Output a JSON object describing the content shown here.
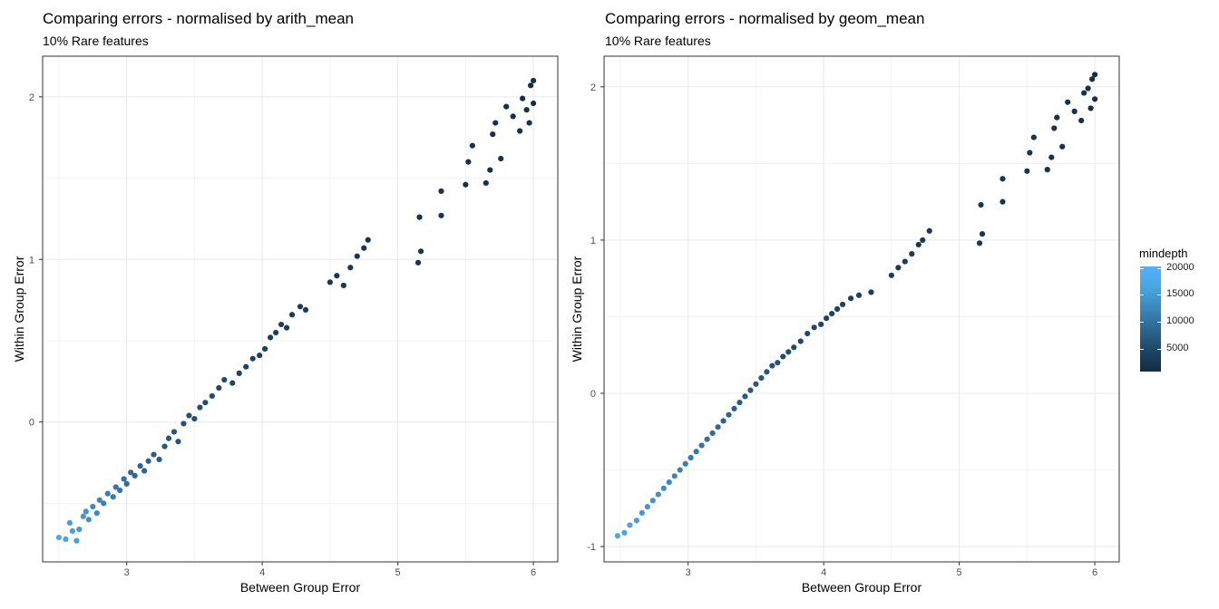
{
  "panels": [
    {
      "title": "Comparing errors - normalised by arith_mean",
      "subtitle": "10% Rare features",
      "xlabel": "Between Group Error",
      "ylabel": "Within Group Error"
    },
    {
      "title": "Comparing errors - normalised by geom_mean",
      "subtitle": "10% Rare features",
      "xlabel": "Between Group Error",
      "ylabel": "Within Group Error"
    }
  ],
  "legend": {
    "title": "mindepth",
    "ticks": [
      "20000",
      "15000",
      "10000",
      "5000"
    ],
    "low_color": "#132b43",
    "high_color": "#56b1f7"
  },
  "chart_data": [
    {
      "type": "scatter",
      "title": "Comparing errors - normalised by arith_mean",
      "subtitle": "10% Rare features",
      "xlabel": "Between Group Error",
      "ylabel": "Within Group Error",
      "xlim": [
        2.38,
        6.18
      ],
      "ylim": [
        -0.86,
        2.25
      ],
      "xticks": [
        3,
        4,
        5,
        6
      ],
      "yticks": [
        0,
        1,
        2
      ],
      "grid": true,
      "color_by": "mindepth",
      "points": [
        [
          2.5,
          -0.71,
          18500
        ],
        [
          2.55,
          -0.72,
          18000
        ],
        [
          2.6,
          -0.67,
          17500
        ],
        [
          2.58,
          -0.62,
          17000
        ],
        [
          2.65,
          -0.66,
          16500
        ],
        [
          2.68,
          -0.58,
          16000
        ],
        [
          2.63,
          -0.73,
          17000
        ],
        [
          2.7,
          -0.55,
          15500
        ],
        [
          2.72,
          -0.6,
          15000
        ],
        [
          2.75,
          -0.52,
          14500
        ],
        [
          2.78,
          -0.56,
          14000
        ],
        [
          2.8,
          -0.48,
          13500
        ],
        [
          2.83,
          -0.5,
          13000
        ],
        [
          2.86,
          -0.44,
          12500
        ],
        [
          2.9,
          -0.46,
          12000
        ],
        [
          2.92,
          -0.4,
          11500
        ],
        [
          2.95,
          -0.42,
          11000
        ],
        [
          2.98,
          -0.35,
          10500
        ],
        [
          3.0,
          -0.38,
          10000
        ],
        [
          3.03,
          -0.31,
          9800
        ],
        [
          3.06,
          -0.33,
          9500
        ],
        [
          3.1,
          -0.27,
          9000
        ],
        [
          3.13,
          -0.3,
          8800
        ],
        [
          3.16,
          -0.24,
          8500
        ],
        [
          3.2,
          -0.2,
          8000
        ],
        [
          3.24,
          -0.23,
          7800
        ],
        [
          3.28,
          -0.15,
          7500
        ],
        [
          3.31,
          -0.1,
          7200
        ],
        [
          3.35,
          -0.06,
          7000
        ],
        [
          3.38,
          -0.12,
          6800
        ],
        [
          3.42,
          -0.01,
          6500
        ],
        [
          3.46,
          0.04,
          6300
        ],
        [
          3.5,
          0.02,
          6000
        ],
        [
          3.54,
          0.09,
          5800
        ],
        [
          3.58,
          0.12,
          5600
        ],
        [
          3.63,
          0.16,
          5400
        ],
        [
          3.68,
          0.21,
          5200
        ],
        [
          3.72,
          0.26,
          5000
        ],
        [
          3.78,
          0.24,
          4800
        ],
        [
          3.83,
          0.3,
          4600
        ],
        [
          3.88,
          0.34,
          4400
        ],
        [
          3.93,
          0.39,
          4200
        ],
        [
          3.98,
          0.41,
          4000
        ],
        [
          4.02,
          0.45,
          3900
        ],
        [
          4.06,
          0.52,
          3800
        ],
        [
          4.1,
          0.55,
          3700
        ],
        [
          4.14,
          0.6,
          3600
        ],
        [
          4.18,
          0.58,
          3500
        ],
        [
          4.22,
          0.66,
          3400
        ],
        [
          4.28,
          0.71,
          3300
        ],
        [
          4.32,
          0.69,
          3200
        ],
        [
          4.5,
          0.86,
          3000
        ],
        [
          4.55,
          0.9,
          2900
        ],
        [
          4.6,
          0.84,
          2800
        ],
        [
          4.65,
          0.95,
          2700
        ],
        [
          4.7,
          1.02,
          2600
        ],
        [
          4.75,
          1.07,
          2500
        ],
        [
          4.78,
          1.12,
          2400
        ],
        [
          5.15,
          0.98,
          2300
        ],
        [
          5.17,
          1.05,
          2300
        ],
        [
          5.16,
          1.26,
          2200
        ],
        [
          5.32,
          1.27,
          2200
        ],
        [
          5.32,
          1.42,
          2100
        ],
        [
          5.5,
          1.46,
          2100
        ],
        [
          5.52,
          1.6,
          2000
        ],
        [
          5.55,
          1.7,
          2000
        ],
        [
          5.65,
          1.47,
          1900
        ],
        [
          5.68,
          1.55,
          1900
        ],
        [
          5.7,
          1.77,
          1800
        ],
        [
          5.72,
          1.84,
          1800
        ],
        [
          5.76,
          1.62,
          1800
        ],
        [
          5.8,
          1.94,
          1700
        ],
        [
          5.85,
          1.88,
          1700
        ],
        [
          5.9,
          1.79,
          1700
        ],
        [
          5.92,
          1.99,
          1600
        ],
        [
          5.95,
          1.92,
          1600
        ],
        [
          5.98,
          2.07,
          1500
        ],
        [
          6.0,
          2.1,
          1500
        ],
        [
          5.97,
          1.84,
          1500
        ],
        [
          6.0,
          1.96,
          1500
        ]
      ]
    },
    {
      "type": "scatter",
      "title": "Comparing errors - normalised by geom_mean",
      "subtitle": "10% Rare features",
      "xlabel": "Between Group Error",
      "ylabel": "Within Group Error",
      "xlim": [
        2.38,
        6.18
      ],
      "ylim": [
        -1.1,
        2.2
      ],
      "xticks": [
        3,
        4,
        5,
        6
      ],
      "yticks": [
        -1,
        0,
        1,
        2
      ],
      "grid": true,
      "color_by": "mindepth",
      "points": [
        [
          2.48,
          -0.93,
          18500
        ],
        [
          2.53,
          -0.91,
          18000
        ],
        [
          2.57,
          -0.86,
          17500
        ],
        [
          2.62,
          -0.83,
          17000
        ],
        [
          2.66,
          -0.78,
          16500
        ],
        [
          2.7,
          -0.74,
          16000
        ],
        [
          2.74,
          -0.7,
          15500
        ],
        [
          2.78,
          -0.66,
          15000
        ],
        [
          2.82,
          -0.62,
          14500
        ],
        [
          2.86,
          -0.58,
          14000
        ],
        [
          2.9,
          -0.54,
          13500
        ],
        [
          2.94,
          -0.5,
          13000
        ],
        [
          2.98,
          -0.46,
          12500
        ],
        [
          3.02,
          -0.42,
          12000
        ],
        [
          3.06,
          -0.38,
          11500
        ],
        [
          3.1,
          -0.34,
          11000
        ],
        [
          3.14,
          -0.3,
          10500
        ],
        [
          3.18,
          -0.26,
          10000
        ],
        [
          3.22,
          -0.22,
          9500
        ],
        [
          3.26,
          -0.18,
          9000
        ],
        [
          3.3,
          -0.14,
          8800
        ],
        [
          3.34,
          -0.1,
          8500
        ],
        [
          3.38,
          -0.06,
          8000
        ],
        [
          3.42,
          -0.02,
          7800
        ],
        [
          3.46,
          0.02,
          7500
        ],
        [
          3.5,
          0.06,
          7200
        ],
        [
          3.54,
          0.1,
          7000
        ],
        [
          3.58,
          0.14,
          6800
        ],
        [
          3.62,
          0.18,
          6500
        ],
        [
          3.66,
          0.2,
          6300
        ],
        [
          3.7,
          0.24,
          6000
        ],
        [
          3.74,
          0.27,
          5800
        ],
        [
          3.78,
          0.3,
          5600
        ],
        [
          3.83,
          0.34,
          5400
        ],
        [
          3.88,
          0.39,
          5200
        ],
        [
          3.93,
          0.43,
          5000
        ],
        [
          3.98,
          0.45,
          4800
        ],
        [
          4.02,
          0.49,
          4600
        ],
        [
          4.06,
          0.52,
          4400
        ],
        [
          4.1,
          0.55,
          4200
        ],
        [
          4.14,
          0.58,
          4000
        ],
        [
          4.2,
          0.62,
          3900
        ],
        [
          4.26,
          0.64,
          3800
        ],
        [
          4.35,
          0.66,
          3700
        ],
        [
          4.5,
          0.77,
          3500
        ],
        [
          4.55,
          0.82,
          3400
        ],
        [
          4.6,
          0.86,
          3300
        ],
        [
          4.65,
          0.91,
          3200
        ],
        [
          4.7,
          0.97,
          3100
        ],
        [
          4.73,
          1.0,
          3000
        ],
        [
          4.78,
          1.06,
          2900
        ],
        [
          5.15,
          0.98,
          2600
        ],
        [
          5.17,
          1.04,
          2600
        ],
        [
          5.16,
          1.23,
          2500
        ],
        [
          5.32,
          1.25,
          2400
        ],
        [
          5.32,
          1.4,
          2400
        ],
        [
          5.5,
          1.45,
          2300
        ],
        [
          5.52,
          1.57,
          2300
        ],
        [
          5.55,
          1.67,
          2200
        ],
        [
          5.65,
          1.46,
          2200
        ],
        [
          5.68,
          1.54,
          2100
        ],
        [
          5.7,
          1.73,
          2100
        ],
        [
          5.72,
          1.8,
          2000
        ],
        [
          5.76,
          1.61,
          2000
        ],
        [
          5.8,
          1.9,
          1900
        ],
        [
          5.85,
          1.84,
          1900
        ],
        [
          5.9,
          1.78,
          1800
        ],
        [
          5.92,
          1.96,
          1800
        ],
        [
          5.95,
          1.99,
          1700
        ],
        [
          5.98,
          2.05,
          1700
        ],
        [
          6.0,
          2.08,
          1600
        ],
        [
          5.97,
          1.86,
          1600
        ],
        [
          6.0,
          1.92,
          1600
        ]
      ]
    }
  ]
}
